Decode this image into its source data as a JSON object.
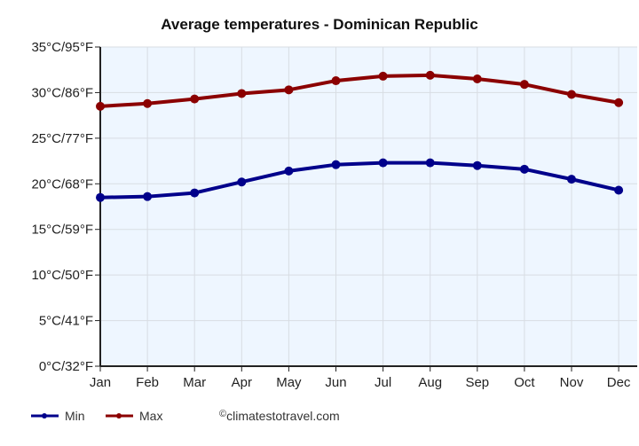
{
  "chart_data": {
    "type": "line",
    "title": "Average temperatures - Dominican Republic",
    "categories": [
      "Jan",
      "Feb",
      "Mar",
      "Apr",
      "May",
      "Jun",
      "Jul",
      "Aug",
      "Sep",
      "Oct",
      "Nov",
      "Dec"
    ],
    "y_tick_labels": [
      "0°C/32°F",
      "5°C/41°F",
      "10°C/50°F",
      "15°C/59°F",
      "20°C/68°F",
      "25°C/77°F",
      "30°C/86°F",
      "35°C/95°F"
    ],
    "y_ticks": [
      0,
      5,
      10,
      15,
      20,
      25,
      30,
      35
    ],
    "ylim": [
      0,
      35
    ],
    "grid": true,
    "legend_position": "bottom-left",
    "series": [
      {
        "name": "Min",
        "color": "#00008b",
        "values": [
          18.5,
          18.6,
          19.0,
          20.2,
          21.4,
          22.1,
          22.3,
          22.3,
          22.0,
          21.6,
          20.5,
          19.3
        ]
      },
      {
        "name": "Max",
        "color": "#8b0000",
        "values": [
          28.5,
          28.8,
          29.3,
          29.9,
          30.3,
          31.3,
          31.8,
          31.9,
          31.5,
          30.9,
          29.8,
          28.9
        ]
      }
    ],
    "credit": "climatestotravel.com",
    "plot_background": "#eef6ff"
  }
}
